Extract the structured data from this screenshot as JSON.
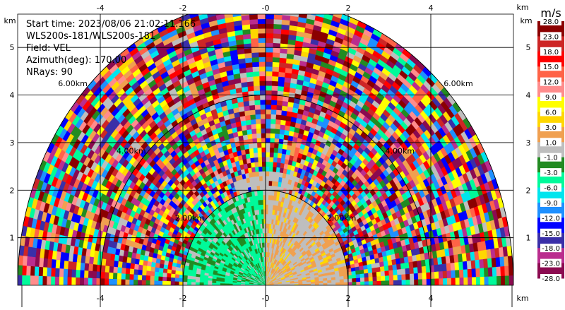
{
  "chart_data": {
    "type": "heatmap",
    "subtype": "radar-ppi-sector",
    "info": {
      "start_time": "Start time: 2023/08/06 21:02:11.166",
      "instrument": "WLS200s-181/WLS200s-181",
      "field": "Field: VEL",
      "azimuth": "Azimuth(deg): 170.00",
      "nrays": "NRays: 90"
    },
    "x_ticks": [
      -4,
      -2,
      0,
      2,
      4
    ],
    "x_tick_labels": [
      "-4",
      "-2",
      "-0",
      "2",
      "4"
    ],
    "y_ticks": [
      1,
      2,
      3,
      4,
      5
    ],
    "y_tick_labels": [
      "1",
      "2",
      "3",
      "4",
      "5"
    ],
    "xlim": [
      -6,
      6
    ],
    "ylim": [
      0,
      5.7
    ],
    "unit_km_label": "km",
    "range_rings_km": [
      2,
      4,
      6
    ],
    "range_ring_labels": [
      "2.00km",
      "4.00km",
      "6.00km"
    ],
    "max_range_km": 6,
    "colorbar": {
      "unit": "m/s",
      "bounds": [
        -28,
        -23,
        -18,
        -15,
        -12,
        -9,
        -6,
        -3,
        -1,
        1,
        3,
        6,
        9,
        12,
        15,
        18,
        23,
        28
      ],
      "labels": [
        "28.0",
        "23.0",
        "18.0",
        "15.0",
        "12.0",
        "9.0",
        "6.0",
        "3.0",
        "1.0",
        "-1.0",
        "-3.0",
        "-6.0",
        "-9.0",
        "-12.0",
        "-15.0",
        "-18.0",
        "-23.0",
        "-28.0"
      ],
      "colors": [
        "#8b0a50",
        "#ba2d8e",
        "#3a2fa8",
        "#0000ff",
        "#1e90ff",
        "#00e5ee",
        "#00fa9a",
        "#228b22",
        "#bebebe",
        "#f0a050",
        "#ffd700",
        "#ffff00",
        "#ff8c8c",
        "#ff6347",
        "#ff0000",
        "#cd2626",
        "#8b0000"
      ]
    },
    "pattern": {
      "near_range_km": 2,
      "far_velocity_noise": true,
      "near_left_colors": [
        "#228b22",
        "#00fa9a",
        "#bebebe"
      ],
      "near_right_colors": [
        "#bebebe",
        "#f0a050",
        "#ffd700"
      ]
    }
  }
}
